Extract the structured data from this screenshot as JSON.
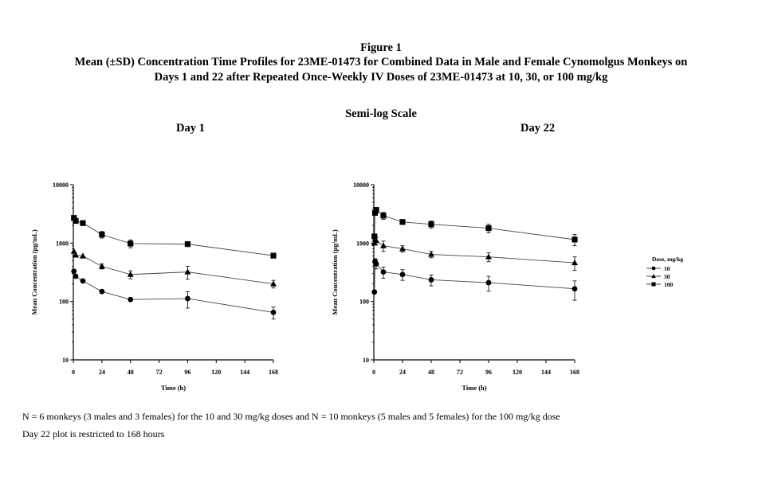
{
  "figure_label": "Figure 1",
  "title_line1": "Mean (±SD) Concentration Time Profiles for 23ME-01473 for Combined Data in Male and Female Cynomolgus Monkeys on",
  "title_line2": "Days 1 and 22 after Repeated Once-Weekly IV Doses of 23ME-01473 at 10, 30, or 100 mg/kg",
  "scale_label": "Semi-log Scale",
  "notes": [
    "N = 6 monkeys (3 males and 3 females) for the 10 and 30 mg/kg doses and N = 10 monkeys (5 males and 5 females) for the 100 mg/kg dose",
    "Day 22 plot is restricted to 168 hours"
  ],
  "legend": {
    "title": "Dose, mg/kg",
    "entries": [
      {
        "label": "10",
        "marker": "circle"
      },
      {
        "label": "30",
        "marker": "triangle"
      },
      {
        "label": "100",
        "marker": "square"
      }
    ]
  },
  "chart_data": [
    {
      "type": "line",
      "title": "Day 1",
      "xlabel": "Time (h)",
      "ylabel": "Mean Concentration (µg/mL)",
      "y_scale": "log",
      "xlim": [
        0,
        168
      ],
      "ylim": [
        10,
        10000
      ],
      "x_ticks": [
        "0",
        "24",
        "48",
        "72",
        "96",
        "120",
        "144",
        "168"
      ],
      "y_ticks": [
        "10",
        "100",
        "1000",
        "10000"
      ],
      "series": [
        {
          "name": "10",
          "marker": "circle",
          "x": [
            0.5,
            2,
            8,
            24,
            48,
            96,
            168
          ],
          "y": [
            330,
            270,
            225,
            148,
            108,
            112,
            65
          ],
          "sd": [
            0,
            0,
            0,
            0,
            0,
            35,
            15
          ]
        },
        {
          "name": "30",
          "marker": "triangle",
          "x": [
            0.5,
            2,
            8,
            24,
            48,
            96,
            168
          ],
          "y": [
            720,
            620,
            600,
            400,
            290,
            320,
            200
          ],
          "sd": [
            0,
            0,
            0,
            40,
            45,
            80,
            30
          ]
        },
        {
          "name": "100",
          "marker": "square",
          "x": [
            0.5,
            2,
            8,
            24,
            48,
            96,
            168
          ],
          "y": [
            2700,
            2400,
            2200,
            1400,
            980,
            960,
            610
          ],
          "sd": [
            0,
            0,
            0,
            180,
            150,
            0,
            0
          ]
        }
      ]
    },
    {
      "type": "line",
      "title": "Day 22",
      "xlabel": "Time (h)",
      "ylabel": "Mean Concentration (µg/mL)",
      "y_scale": "log",
      "xlim": [
        0,
        168
      ],
      "ylim": [
        10,
        10000
      ],
      "x_ticks": [
        "0",
        "24",
        "48",
        "72",
        "96",
        "120",
        "144",
        "168"
      ],
      "y_ticks": [
        "10",
        "100",
        "1000",
        "10000"
      ],
      "series": [
        {
          "name": "10",
          "marker": "circle",
          "x": [
            0.5,
            1,
            2,
            8,
            24,
            48,
            96,
            168
          ],
          "y": [
            145,
            480,
            440,
            320,
            290,
            235,
            210,
            165
          ],
          "sd": [
            0,
            60,
            80,
            70,
            60,
            50,
            60,
            60
          ]
        },
        {
          "name": "30",
          "marker": "triangle",
          "x": [
            0.5,
            1,
            2,
            8,
            24,
            48,
            96,
            168
          ],
          "y": [
            1000,
            1150,
            1100,
            900,
            800,
            640,
            580,
            460
          ],
          "sd": [
            0,
            120,
            150,
            180,
            100,
            80,
            100,
            120
          ]
        },
        {
          "name": "100",
          "marker": "square",
          "x": [
            0.5,
            1,
            2,
            8,
            24,
            48,
            96,
            168
          ],
          "y": [
            1300,
            3300,
            3700,
            2950,
            2300,
            2100,
            1800,
            1150
          ],
          "sd": [
            0,
            300,
            200,
            400,
            200,
            300,
            300,
            250
          ]
        }
      ]
    }
  ]
}
